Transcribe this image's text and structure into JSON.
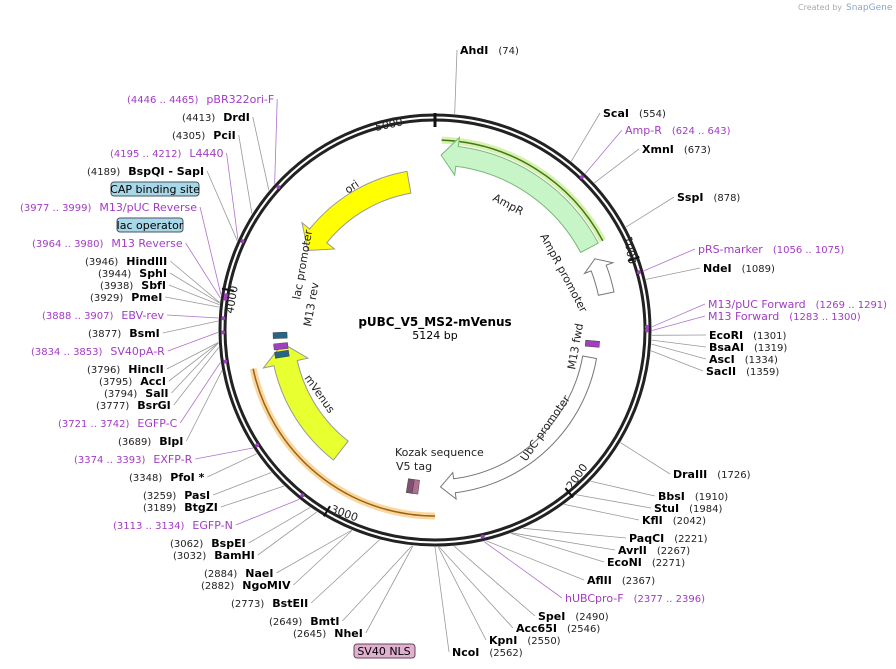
{
  "credit": {
    "prefix": "Created by",
    "brand": "SnapGene"
  },
  "map": {
    "name": "pUBC_V5_MS2-mVenus",
    "length": "5124 bp",
    "ticks": [
      "1000",
      "2000",
      "3000",
      "4000",
      "5000"
    ]
  },
  "features": [
    {
      "label": "ori"
    },
    {
      "label": "AmpR"
    },
    {
      "label": "AmpR promoter"
    },
    {
      "label": "lac promoter"
    },
    {
      "label": "M13 rev"
    },
    {
      "label": "mVenus"
    },
    {
      "label": "Kozak sequence"
    },
    {
      "label": "V5 tag"
    },
    {
      "label": "UbC promoter"
    },
    {
      "label": "M13 fwd"
    }
  ],
  "boxed": [
    {
      "label": "CAP binding site"
    },
    {
      "label": "lac operator"
    },
    {
      "label": "SV40 NLS"
    }
  ],
  "sites": [
    {
      "name": "AhdI",
      "pos": "(74)"
    },
    {
      "name": "ScaI",
      "pos": "(554)"
    },
    {
      "name": "XmnI",
      "pos": "(673)"
    },
    {
      "name": "SspI",
      "pos": "(878)"
    },
    {
      "name": "NdeI",
      "pos": "(1089)"
    },
    {
      "name": "EcoRI",
      "pos": "(1301)"
    },
    {
      "name": "BsaAI",
      "pos": "(1319)"
    },
    {
      "name": "AscI",
      "pos": "(1334)"
    },
    {
      "name": "SacII",
      "pos": "(1359)"
    },
    {
      "name": "DraIII",
      "pos": "(1726)"
    },
    {
      "name": "BbsI",
      "pos": "(1910)"
    },
    {
      "name": "StuI",
      "pos": "(1984)"
    },
    {
      "name": "KflI",
      "pos": "(2042)"
    },
    {
      "name": "PaqCI",
      "pos": "(2221)"
    },
    {
      "name": "AvrII",
      "pos": "(2267)"
    },
    {
      "name": "EcoNI",
      "pos": "(2271)"
    },
    {
      "name": "AflII",
      "pos": "(2367)"
    },
    {
      "name": "SpeI",
      "pos": "(2490)"
    },
    {
      "name": "Acc65I",
      "pos": "(2546)"
    },
    {
      "name": "KpnI",
      "pos": "(2550)"
    },
    {
      "name": "NcoI",
      "pos": "(2562)"
    },
    {
      "name": "NheI",
      "pos": "(2645)"
    },
    {
      "name": "BmtI",
      "pos": "(2649)"
    },
    {
      "name": "BstEII",
      "pos": "(2773)"
    },
    {
      "name": "NgoMIV",
      "pos": "(2882)"
    },
    {
      "name": "NaeI",
      "pos": "(2884)"
    },
    {
      "name": "BamHI",
      "pos": "(3032)"
    },
    {
      "name": "BspEI",
      "pos": "(3062)"
    },
    {
      "name": "BtgZI",
      "pos": "(3189)"
    },
    {
      "name": "PasI",
      "pos": "(3259)"
    },
    {
      "name": "PfoI *",
      "pos": "(3348)"
    },
    {
      "name": "BlpI",
      "pos": "(3689)"
    },
    {
      "name": "BsrGI",
      "pos": "(3777)"
    },
    {
      "name": "SalI",
      "pos": "(3794)"
    },
    {
      "name": "AccI",
      "pos": "(3795)"
    },
    {
      "name": "HincII",
      "pos": "(3796)"
    },
    {
      "name": "BsmI",
      "pos": "(3877)"
    },
    {
      "name": "PmeI",
      "pos": "(3929)"
    },
    {
      "name": "SbfI",
      "pos": "(3938)"
    },
    {
      "name": "SphI",
      "pos": "(3944)"
    },
    {
      "name": "HindIII",
      "pos": "(3946)"
    },
    {
      "name": "BspQI  - SapI",
      "pos": "(4189)"
    },
    {
      "name": "PciI",
      "pos": "(4305)"
    },
    {
      "name": "DrdI",
      "pos": "(4413)"
    }
  ],
  "primers": [
    {
      "name": "Amp-R",
      "pos": "(624 .. 643)"
    },
    {
      "name": "pRS-marker",
      "pos": "(1056 .. 1075)"
    },
    {
      "name": "M13/pUC Forward",
      "pos": "(1269 .. 1291)"
    },
    {
      "name": "M13 Forward",
      "pos": "(1283 .. 1300)"
    },
    {
      "name": "hUBCpro-F",
      "pos": "(2377 .. 2396)"
    },
    {
      "name": "EGFP-N",
      "pos": "(3113 .. 3134)"
    },
    {
      "name": "EXFP-R",
      "pos": "(3374 .. 3393)"
    },
    {
      "name": "EGFP-C",
      "pos": "(3721 .. 3742)"
    },
    {
      "name": "SV40pA-R",
      "pos": "(3834 .. 3853)"
    },
    {
      "name": "EBV-rev",
      "pos": "(3888 .. 3907)"
    },
    {
      "name": "M13 Reverse",
      "pos": "(3964 .. 3980)"
    },
    {
      "name": "M13/pUC Reverse",
      "pos": "(3977 .. 3999)"
    },
    {
      "name": "L4440",
      "pos": "(4195 .. 4212)"
    },
    {
      "name": "pBR322ori-F",
      "pos": "(4446 .. 4465)"
    }
  ]
}
